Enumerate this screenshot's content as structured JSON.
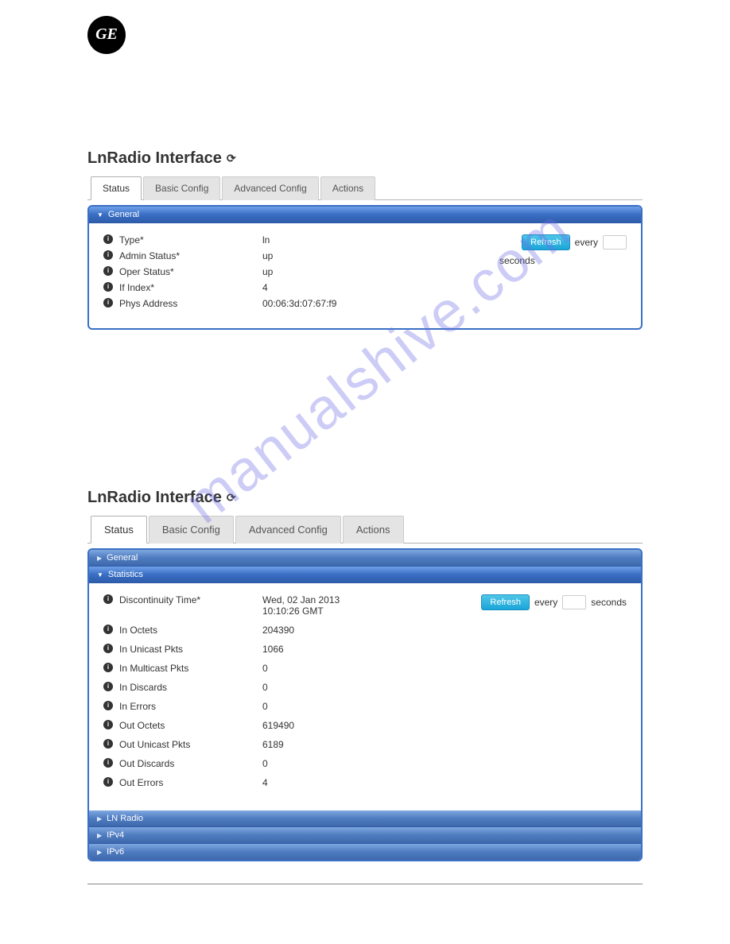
{
  "watermark": "manualshive.com",
  "logo_label": "GE",
  "section1": {
    "title": "LnRadio Interface",
    "tabs": [
      "Status",
      "Basic Config",
      "Advanced Config",
      "Actions"
    ],
    "active_tab": 0,
    "general_header": "General",
    "refresh_btn": "Refresh",
    "every_label": "every",
    "seconds_label": "seconds",
    "rows": [
      {
        "label": "Type*",
        "value": "ln"
      },
      {
        "label": "Admin Status*",
        "value": "up"
      },
      {
        "label": "Oper Status*",
        "value": "up"
      },
      {
        "label": "If Index*",
        "value": "4"
      },
      {
        "label": "Phys Address",
        "value": "00:06:3d:07:67:f9"
      }
    ]
  },
  "section2": {
    "title": "LnRadio Interface",
    "tabs": [
      "Status",
      "Basic Config",
      "Advanced Config",
      "Actions"
    ],
    "active_tab": 0,
    "headers": {
      "general": "General",
      "statistics": "Statistics",
      "lnradio": "LN Radio",
      "ipv4": "IPv4",
      "ipv6": "IPv6"
    },
    "refresh_btn": "Refresh",
    "every_label": "every",
    "seconds_label": "seconds",
    "rows": [
      {
        "label": "Discontinuity Time*",
        "value": "Wed, 02 Jan 2013\n10:10:26 GMT"
      },
      {
        "label": "In Octets",
        "value": "204390"
      },
      {
        "label": "In Unicast Pkts",
        "value": "1066"
      },
      {
        "label": "In Multicast Pkts",
        "value": "0"
      },
      {
        "label": "In Discards",
        "value": "0"
      },
      {
        "label": "In Errors",
        "value": "0"
      },
      {
        "label": "Out Octets",
        "value": "619490"
      },
      {
        "label": "Out Unicast Pkts",
        "value": "6189"
      },
      {
        "label": "Out Discards",
        "value": "0"
      },
      {
        "label": "Out Errors",
        "value": "4"
      }
    ]
  },
  "colors": {
    "header_grad_top": "#6fa0e8",
    "header_grad_bottom": "#2e5caa",
    "panel_border": "#3a6fc4",
    "btn_refresh_top": "#4fc6e8",
    "btn_refresh_bottom": "#1aa5d8"
  }
}
